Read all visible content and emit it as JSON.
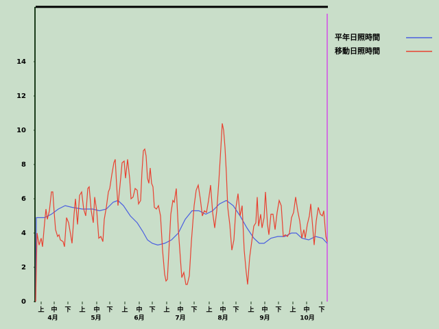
{
  "chart_data": {
    "type": "line",
    "xlim": [
      0,
      212.5
    ],
    "ylim": [
      0,
      17.2
    ],
    "yticks": [
      0,
      2,
      4,
      6,
      8,
      10,
      12,
      14
    ],
    "xticks": [
      {
        "value": 4,
        "label": "上"
      },
      {
        "value": 13.5,
        "label": "中"
      },
      {
        "value": 23.5,
        "label": "下"
      },
      {
        "value": 34,
        "label": "上"
      },
      {
        "value": 44.5,
        "label": "中"
      },
      {
        "value": 54,
        "label": "下"
      },
      {
        "value": 65,
        "label": "上"
      },
      {
        "value": 75.5,
        "label": "中"
      },
      {
        "value": 85,
        "label": "下"
      },
      {
        "value": 95.5,
        "label": "上"
      },
      {
        "value": 105.5,
        "label": "中"
      },
      {
        "value": 115.5,
        "label": "下"
      },
      {
        "value": 126.5,
        "label": "上"
      },
      {
        "value": 136.5,
        "label": "中"
      },
      {
        "value": 146,
        "label": "下"
      },
      {
        "value": 157,
        "label": "上"
      },
      {
        "value": 167,
        "label": "中"
      },
      {
        "value": 177,
        "label": "下"
      },
      {
        "value": 187.5,
        "label": "上"
      },
      {
        "value": 197.5,
        "label": "中"
      },
      {
        "value": 208.5,
        "label": "下"
      }
    ],
    "month_labels": [
      {
        "value": 12.5,
        "label": "4月"
      },
      {
        "value": 44,
        "label": "5月"
      },
      {
        "value": 75.5,
        "label": "6月"
      },
      {
        "value": 105.5,
        "label": "7月"
      },
      {
        "value": 136.5,
        "label": "8月"
      },
      {
        "value": 167,
        "label": "9月"
      },
      {
        "value": 198,
        "label": "10月"
      }
    ],
    "grid": false,
    "series": [
      {
        "name": "平年日照時間",
        "color": "#4a5ee0",
        "x": [
          0,
          0.5,
          6.5,
          11.5,
          16.5,
          21.5,
          26.5,
          34,
          41.5,
          46.5,
          51.5,
          56.5,
          60,
          64,
          69,
          74,
          78,
          81.5,
          85,
          89,
          94,
          99,
          104,
          109,
          114,
          119,
          124,
          129,
          134,
          139,
          144,
          149,
          154,
          159,
          163,
          166.5,
          171.5,
          176.5,
          181.5,
          186.5,
          190,
          194,
          199,
          204,
          209,
          212.5
        ],
        "values": [
          0,
          4.9,
          4.9,
          5.1,
          5.4,
          5.6,
          5.5,
          5.4,
          5.4,
          5.3,
          5.4,
          5.8,
          5.9,
          5.6,
          5.0,
          4.6,
          4.1,
          3.6,
          3.4,
          3.3,
          3.4,
          3.6,
          4.0,
          4.8,
          5.3,
          5.3,
          5.1,
          5.3,
          5.7,
          5.9,
          5.6,
          5.0,
          4.3,
          3.7,
          3.4,
          3.4,
          3.7,
          3.8,
          3.8,
          4.0,
          4.0,
          3.7,
          3.6,
          3.8,
          3.7,
          3.4
        ]
      },
      {
        "name": "移動日照時間",
        "color": "#e84030",
        "x": [
          0,
          1,
          2.5,
          4,
          5,
          6.5,
          7.5,
          8.5,
          10,
          11.5,
          12.5,
          13.5,
          14.5,
          16,
          17,
          18,
          20,
          21,
          22.5,
          24,
          25.5,
          26.5,
          28,
          29,
          30.5,
          32,
          33.5,
          35,
          36.5,
          38,
          39,
          40.5,
          42,
          43,
          44.5,
          46,
          47.5,
          49,
          50,
          51.5,
          53,
          54,
          55.5,
          57,
          58,
          59,
          60,
          61.5,
          63,
          64.5,
          65.5,
          67,
          68.5,
          69.5,
          71,
          72.5,
          74,
          75,
          76.5,
          77.5,
          78.5,
          79.5,
          80.5,
          81.5,
          82.5,
          83.5,
          84.5,
          85.5,
          86.5,
          88,
          89.5,
          91,
          92.5,
          94,
          95,
          96,
          97,
          98.5,
          100,
          101,
          102.5,
          104,
          105.5,
          106.5,
          108,
          109.5,
          110.5,
          112,
          113.5,
          115.5,
          117,
          118.5,
          120,
          121.5,
          123,
          124.5,
          126,
          127.5,
          129,
          130.5,
          132,
          133.5,
          135,
          136,
          137,
          138,
          139,
          140,
          141.5,
          143,
          144.5,
          146,
          147.5,
          149,
          150.5,
          152,
          153.5,
          154.5,
          156,
          157.5,
          159,
          160.5,
          161.5,
          162.5,
          164,
          165,
          166.5,
          167.5,
          169,
          170,
          171.5,
          173,
          174.5,
          176,
          177.5,
          179,
          180.5,
          182,
          183.5,
          185,
          186.5,
          188,
          189.5,
          191,
          192.5,
          194,
          195.5,
          196.5,
          198,
          199.5,
          200.5,
          202,
          203,
          204.5,
          206,
          207.5,
          209,
          210,
          211.5,
          212.5
        ],
        "values": [
          0,
          4,
          3.3,
          3.7,
          3.2,
          4.6,
          5.4,
          4.8,
          5.3,
          6.4,
          6.4,
          5.2,
          4.2,
          3.8,
          3.9,
          3.6,
          3.5,
          3.2,
          4.9,
          4.6,
          3.9,
          3.4,
          5.1,
          6.0,
          4.5,
          6.2,
          6.4,
          5.4,
          5.0,
          6.6,
          6.7,
          5.3,
          4.6,
          6.1,
          5.3,
          3.7,
          3.8,
          3.5,
          4.8,
          5.5,
          6.4,
          6.6,
          7.4,
          8.1,
          8.3,
          6.8,
          5.6,
          6.8,
          8.1,
          8.2,
          7.2,
          8.3,
          7.2,
          6.0,
          6.1,
          6.6,
          6.5,
          5.7,
          5.9,
          7.6,
          8.8,
          8.9,
          8.5,
          7.2,
          6.9,
          7.8,
          6.9,
          6.7,
          5.5,
          5.4,
          5.6,
          5.0,
          3.0,
          1.6,
          1.2,
          1.3,
          2.8,
          5.1,
          5.9,
          5.8,
          6.6,
          4.2,
          2.5,
          1.4,
          1.7,
          1.0,
          1.0,
          1.5,
          3.5,
          5.6,
          6.5,
          6.8,
          6.0,
          5.0,
          5.3,
          5.2,
          5.9,
          6.8,
          5.2,
          4.3,
          5.3,
          7.0,
          9.0,
          10.4,
          10.0,
          9.0,
          7.5,
          5.5,
          4.5,
          3.0,
          3.6,
          5.5,
          6.3,
          5.0,
          5.6,
          3.0,
          1.7,
          1.0,
          2.6,
          3.5,
          4.4,
          4.6,
          6.1,
          4.4,
          5.1,
          4.3,
          4.9,
          6.4,
          4.5,
          3.9,
          5.1,
          5.1,
          4.2,
          5.2,
          5.9,
          5.6,
          3.8,
          3.9,
          3.8,
          4.0,
          4.9,
          5.2,
          6.1,
          5.3,
          4.7,
          3.7,
          4.2,
          3.7,
          4.5,
          5.0,
          5.7,
          4.3,
          3.3,
          4.7,
          5.5,
          5.1,
          5.0,
          5.3,
          3.8,
          3.5
        ]
      }
    ]
  }
}
